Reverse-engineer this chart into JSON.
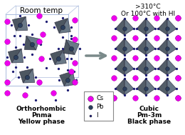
{
  "left_title": "Room temp",
  "right_title": ">310°C\nOr 100°C with HI",
  "left_label1": "Orthorhombic",
  "left_label2": "Pnma",
  "left_label3": "Yellow phase",
  "right_label1": "Cubic",
  "right_label2": "Pm-3m",
  "right_label3": "Black phase",
  "cs_color": "#EE00EE",
  "pb_color": "#2B3F5C",
  "i_color": "#1C1C7A",
  "oct_face_color": "#5A6B7A",
  "oct_edge_color": "#333344",
  "bg_color": "#FFFFFF",
  "arrow_color": "#7A8A8A",
  "box_color": "#AABBDD",
  "legend_labels": [
    "Cs",
    "Pb",
    "I"
  ],
  "legend_colors": [
    "#EE00EE",
    "#2B3F5C",
    "#1C1C7A"
  ],
  "legend_sizes": [
    5.5,
    4.2,
    2.2
  ]
}
